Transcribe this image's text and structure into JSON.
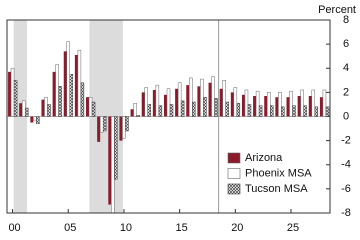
{
  "chart_data": {
    "type": "bar",
    "y_axis_label": "Percent",
    "categories": [
      "00",
      null,
      null,
      null,
      null,
      "05",
      null,
      null,
      null,
      null,
      "10",
      null,
      null,
      null,
      null,
      "15",
      null,
      null,
      null,
      null,
      "20",
      null,
      null,
      null,
      null,
      "25",
      null,
      null,
      null
    ],
    "series": [
      {
        "name": "Arizona",
        "color": "#8b1a2b",
        "values": [
          3.7,
          1.1,
          -0.5,
          1.4,
          3.7,
          5.4,
          5.1,
          1.6,
          -2.1,
          -7.3,
          -2.0,
          0.6,
          2.0,
          2.2,
          1.8,
          2.3,
          2.6,
          2.5,
          2.8,
          2.3,
          2.0,
          1.8,
          1.7,
          1.7,
          1.6,
          1.6,
          1.7,
          1.7,
          1.6
        ]
      },
      {
        "name": "Phoenix MSA",
        "color": "#ffffff",
        "values": [
          4.0,
          1.3,
          -0.3,
          1.6,
          4.3,
          6.2,
          5.5,
          1.6,
          -1.3,
          -8.0,
          -1.8,
          1.1,
          2.4,
          2.6,
          2.3,
          2.8,
          3.2,
          3.1,
          3.3,
          3.0,
          2.4,
          2.2,
          2.1,
          2.0,
          2.0,
          2.1,
          2.2,
          2.2,
          2.2
        ]
      },
      {
        "name": "Tucson MSA",
        "color": "#444444",
        "pattern": "crosshatch",
        "values": [
          3.0,
          0.7,
          -0.6,
          1.0,
          2.5,
          3.5,
          2.8,
          1.2,
          -1.2,
          -5.2,
          -1.2,
          0.1,
          1.0,
          0.9,
          1.0,
          1.3,
          1.2,
          1.6,
          1.5,
          1.2,
          1.1,
          1.0,
          0.9,
          0.9,
          0.8,
          0.9,
          0.9,
          0.8,
          0.8
        ]
      }
    ],
    "ylim": [
      -8,
      8
    ],
    "yticks": [
      -8,
      -6,
      -4,
      -2,
      0,
      2,
      4,
      6,
      8
    ],
    "legend": "lower right"
  }
}
